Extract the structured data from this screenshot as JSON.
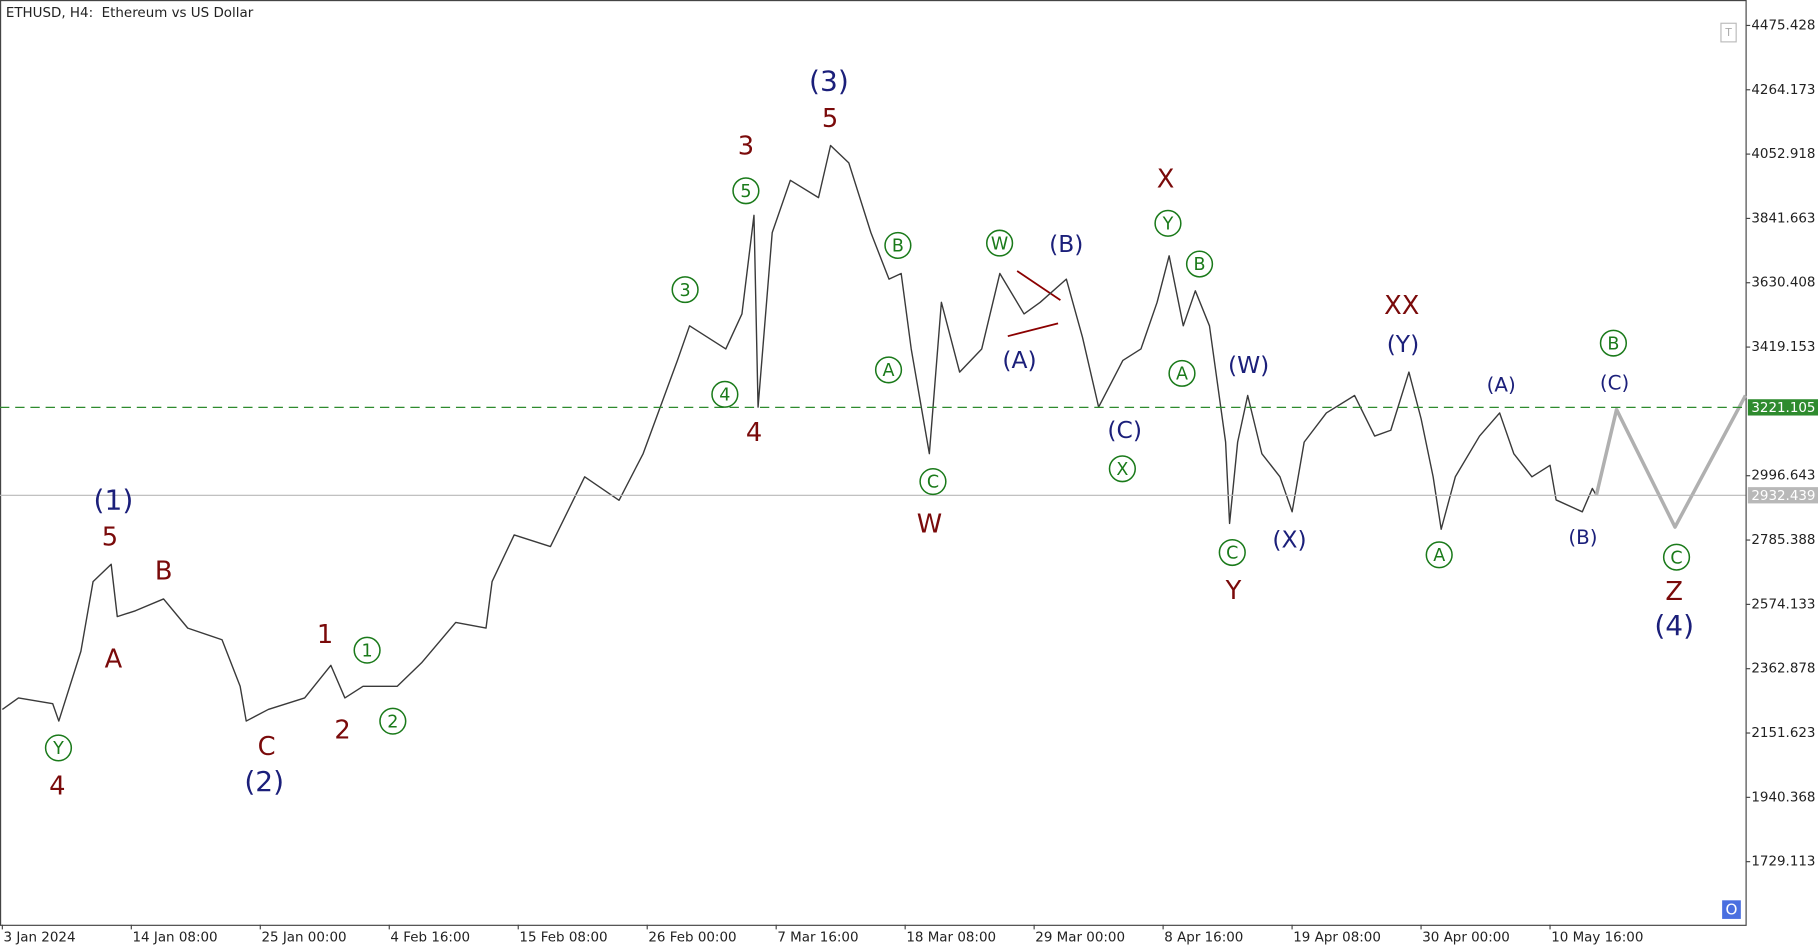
{
  "chart_data": {
    "type": "line",
    "title": "ETHUSD, H4:  Ethereum vs US Dollar",
    "series": [
      {
        "color": "#3a3a3a",
        "x": [
          0,
          8,
          25,
          28,
          39,
          45,
          54,
          57,
          66,
          80,
          92,
          109,
          118,
          121,
          132,
          150,
          163,
          170,
          179,
          196,
          208,
          225,
          240,
          243,
          254,
          272,
          289,
          306,
          318,
          335,
          341,
          359,
          367,
          373,
          375,
          382,
          391,
          405,
          411,
          420,
          431,
          440,
          446,
          451,
          460,
          466,
          475,
          486,
          495,
          507,
          515,
          528,
          536,
          544,
          556,
          565,
          573,
          579,
          586,
          592,
          599,
          607,
          609,
          613,
          618,
          625,
          634,
          640,
          646,
          657,
          671,
          681,
          689,
          698,
          704,
          710,
          714,
          721,
          733,
          743,
          750,
          759,
          768,
          771,
          784,
          789,
          791
        ],
        "values": [
          2229,
          2267,
          2248,
          2191,
          2420,
          2649,
          2706,
          2534,
          2553,
          2592,
          2496,
          2458,
          2305,
          2191,
          2229,
          2267,
          2374,
          2267,
          2305,
          2305,
          2382,
          2515,
          2496,
          2649,
          2802,
          2764,
          2993,
          2916,
          3069,
          3375,
          3489,
          3413,
          3528,
          3852,
          3222,
          3795,
          3967,
          3910,
          4081,
          4024,
          3795,
          3642,
          3661,
          3413,
          3069,
          3566,
          3337,
          3413,
          3661,
          3528,
          3566,
          3642,
          3451,
          3222,
          3375,
          3413,
          3566,
          3719,
          3489,
          3604,
          3489,
          3107,
          2840,
          3107,
          3260,
          3069,
          2993,
          2878,
          3107,
          3203,
          3260,
          3127,
          3146,
          3337,
          3184,
          2993,
          2821,
          2993,
          3127,
          3203,
          3069,
          2993,
          3031,
          2917,
          2878,
          2955,
          2932
        ]
      },
      {
        "color": "#b0b0b0",
        "x": [
          791,
          801,
          830,
          865
        ],
        "values": [
          2932,
          3214,
          2828,
          3260
        ]
      }
    ],
    "levels": [
      {
        "value": 3221.105,
        "color": "#2e8b2e",
        "dashed": true
      },
      {
        "value": 2932.439,
        "color": "#b8b8b8",
        "dashed": false
      }
    ],
    "xlim": [
      0,
      865
    ],
    "ylim": [
      1522,
      4559
    ],
    "yticks": [
      4475.428,
      4264.173,
      4052.918,
      3841.663,
      3630.408,
      3419.153,
      2996.643,
      2785.388,
      2574.133,
      2362.878,
      2151.623,
      1940.368,
      1729.113
    ],
    "xticks": [
      {
        "value": 0,
        "label": "3 Jan 2024"
      },
      {
        "value": 64,
        "label": "14 Jan 08:00"
      },
      {
        "value": 128,
        "label": "25 Jan 00:00"
      },
      {
        "value": 192,
        "label": "4 Feb 16:00"
      },
      {
        "value": 256,
        "label": "15 Feb 08:00"
      },
      {
        "value": 320,
        "label": "26 Feb 00:00"
      },
      {
        "value": 384,
        "label": "7 Mar 16:00"
      },
      {
        "value": 448,
        "label": "18 Mar 08:00"
      },
      {
        "value": 512,
        "label": "29 Mar 00:00"
      },
      {
        "value": 576,
        "label": "8 Apr 16:00"
      },
      {
        "value": 640,
        "label": "19 Apr 08:00"
      },
      {
        "value": 704,
        "label": "30 Apr 00:00"
      },
      {
        "value": 768,
        "label": "10 May 16:00"
      }
    ],
    "annotations": [
      {
        "text": "(1)",
        "color": "#1b1f7a"
      },
      {
        "text": "(2)",
        "color": "#1b1f7a"
      },
      {
        "text": "(3)",
        "color": "#1b1f7a"
      },
      {
        "text": "(4)",
        "color": "#1b1f7a"
      },
      {
        "text": "(A)",
        "color": "#1b1f7a"
      },
      {
        "text": "(B)",
        "color": "#1b1f7a"
      },
      {
        "text": "(C)",
        "color": "#1b1f7a"
      },
      {
        "text": "(W)",
        "color": "#1b1f7a"
      },
      {
        "text": "(X)",
        "color": "#1b1f7a"
      },
      {
        "text": "(Y)",
        "color": "#1b1f7a"
      },
      {
        "text": "(A)",
        "color": "#1b1f7a"
      },
      {
        "text": "(C)",
        "color": "#1b1f7a"
      },
      {
        "text": "(B)",
        "color": "#1b1f7a"
      },
      {
        "text": "5",
        "color": "#7a0a0a"
      },
      {
        "text": "A",
        "color": "#7a0a0a"
      },
      {
        "text": "B",
        "color": "#7a0a0a"
      },
      {
        "text": "4",
        "color": "#7a0a0a"
      },
      {
        "text": "C",
        "color": "#7a0a0a"
      },
      {
        "text": "1",
        "color": "#7a0a0a"
      },
      {
        "text": "2",
        "color": "#7a0a0a"
      },
      {
        "text": "3",
        "color": "#7a0a0a"
      },
      {
        "text": "5",
        "color": "#7a0a0a"
      },
      {
        "text": "4",
        "color": "#7a0a0a"
      },
      {
        "text": "W",
        "color": "#7a0a0a"
      },
      {
        "text": "X",
        "color": "#7a0a0a"
      },
      {
        "text": "XX",
        "color": "#7a0a0a"
      },
      {
        "text": "Y",
        "color": "#7a0a0a"
      },
      {
        "text": "Z",
        "color": "#7a0a0a"
      },
      {
        "text": "Y",
        "color": "#1a7a1a"
      },
      {
        "text": "1",
        "color": "#1a7a1a"
      },
      {
        "text": "2",
        "color": "#1a7a1a"
      },
      {
        "text": "3",
        "color": "#1a7a1a"
      },
      {
        "text": "4",
        "color": "#1a7a1a"
      },
      {
        "text": "5",
        "color": "#1a7a1a"
      },
      {
        "text": "B",
        "color": "#1a7a1a"
      },
      {
        "text": "A",
        "color": "#1a7a1a"
      },
      {
        "text": "C",
        "color": "#1a7a1a"
      },
      {
        "text": "W",
        "color": "#1a7a1a"
      },
      {
        "text": "Y",
        "color": "#1a7a1a"
      },
      {
        "text": "B",
        "color": "#1a7a1a"
      },
      {
        "text": "A",
        "color": "#1a7a1a"
      },
      {
        "text": "X",
        "color": "#1a7a1a"
      },
      {
        "text": "C",
        "color": "#1a7a1a"
      },
      {
        "text": "A",
        "color": "#1a7a1a"
      },
      {
        "text": "B",
        "color": "#1a7a1a"
      },
      {
        "text": "C",
        "color": "#1a7a1a"
      }
    ],
    "corner_marks": [
      "T",
      "O"
    ]
  }
}
